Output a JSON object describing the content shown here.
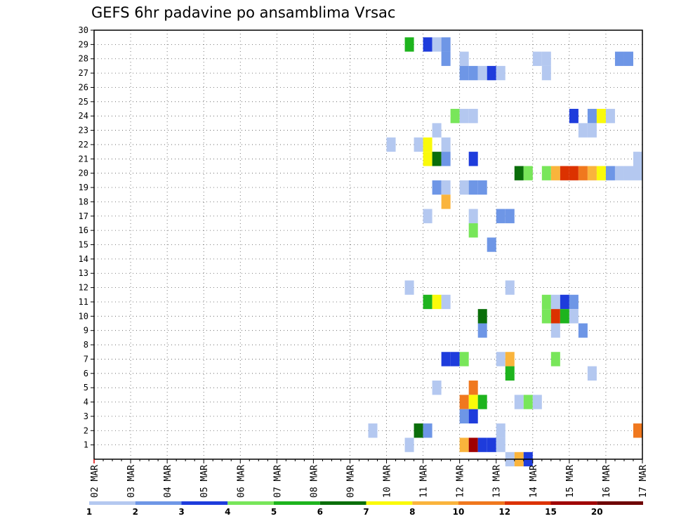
{
  "chart_data": {
    "type": "heatmap",
    "title": "GEFS 6hr padavine po ansamblima Vrsac",
    "x_tick_labels": [
      "02 MAR",
      "03 MAR",
      "04 MAR",
      "05 MAR",
      "06 MAR",
      "07 MAR",
      "08 MAR",
      "09 MAR",
      "10 MAR",
      "11 MAR",
      "12 MAR",
      "13 MAR",
      "14 MAR",
      "15 MAR",
      "16 MAR",
      "17 MAR"
    ],
    "x_range_days": [
      2,
      17
    ],
    "y_tick_labels": [
      "1",
      "2",
      "3",
      "4",
      "5",
      "6",
      "7",
      "8",
      "9",
      "10",
      "11",
      "12",
      "13",
      "14",
      "15",
      "16",
      "17",
      "18",
      "19",
      "20",
      "21",
      "22",
      "23",
      "24",
      "25",
      "26",
      "27",
      "28",
      "29",
      "30"
    ],
    "y_range": [
      0,
      30
    ],
    "grid": true,
    "legend": {
      "placement": "bottom",
      "colors": [
        "#b4c8f0",
        "#6e96e6",
        "#1e3cdc",
        "#78e65a",
        "#1eb41e",
        "#0a6e0a",
        "#fafa0a",
        "#fab43c",
        "#f0781e",
        "#dc3200",
        "#a00000",
        "#6e0000"
      ],
      "labels": [
        "1",
        "2",
        "3",
        "4",
        "5",
        "6",
        "7",
        "8",
        "10",
        "12",
        "15",
        "20"
      ]
    },
    "cells": [
      {
        "day": 10.5,
        "member": 29,
        "level": 5
      },
      {
        "day": 11.0,
        "member": 29,
        "level": 3
      },
      {
        "day": 11.25,
        "member": 29,
        "level": 1
      },
      {
        "day": 11.5,
        "member": 29,
        "level": 2
      },
      {
        "day": 11.5,
        "member": 28,
        "level": 2
      },
      {
        "day": 12.0,
        "member": 28,
        "level": 1
      },
      {
        "day": 14.0,
        "member": 28,
        "level": 1
      },
      {
        "day": 14.25,
        "member": 28,
        "level": 1
      },
      {
        "day": 16.25,
        "member": 28,
        "level": 2
      },
      {
        "day": 16.5,
        "member": 28,
        "level": 2
      },
      {
        "day": 12.0,
        "member": 27,
        "level": 2
      },
      {
        "day": 12.25,
        "member": 27,
        "level": 2
      },
      {
        "day": 12.5,
        "member": 27,
        "level": 1
      },
      {
        "day": 12.75,
        "member": 27,
        "level": 3
      },
      {
        "day": 13.0,
        "member": 27,
        "level": 1
      },
      {
        "day": 14.25,
        "member": 27,
        "level": 1
      },
      {
        "day": 11.75,
        "member": 24,
        "level": 4
      },
      {
        "day": 12.0,
        "member": 24,
        "level": 1
      },
      {
        "day": 12.25,
        "member": 24,
        "level": 1
      },
      {
        "day": 15.0,
        "member": 24,
        "level": 3
      },
      {
        "day": 15.5,
        "member": 24,
        "level": 2
      },
      {
        "day": 15.75,
        "member": 24,
        "level": 7
      },
      {
        "day": 16.0,
        "member": 24,
        "level": 1
      },
      {
        "day": 11.25,
        "member": 23,
        "level": 1
      },
      {
        "day": 15.25,
        "member": 23,
        "level": 1
      },
      {
        "day": 15.5,
        "member": 23,
        "level": 1
      },
      {
        "day": 10.0,
        "member": 22,
        "level": 1
      },
      {
        "day": 10.75,
        "member": 22,
        "level": 1
      },
      {
        "day": 11.0,
        "member": 22,
        "level": 7
      },
      {
        "day": 11.5,
        "member": 22,
        "level": 1
      },
      {
        "day": 11.0,
        "member": 21,
        "level": 7
      },
      {
        "day": 11.25,
        "member": 21,
        "level": 6
      },
      {
        "day": 11.5,
        "member": 21,
        "level": 2
      },
      {
        "day": 12.25,
        "member": 21,
        "level": 3
      },
      {
        "day": 16.75,
        "member": 21,
        "level": 1
      },
      {
        "day": 13.5,
        "member": 20,
        "level": 6
      },
      {
        "day": 13.75,
        "member": 20,
        "level": 4
      },
      {
        "day": 14.25,
        "member": 20,
        "level": 4
      },
      {
        "day": 14.5,
        "member": 20,
        "level": 8
      },
      {
        "day": 14.75,
        "member": 20,
        "level": 10
      },
      {
        "day": 15.0,
        "member": 20,
        "level": 10
      },
      {
        "day": 15.25,
        "member": 20,
        "level": 9
      },
      {
        "day": 15.5,
        "member": 20,
        "level": 8
      },
      {
        "day": 15.75,
        "member": 20,
        "level": 7
      },
      {
        "day": 16.0,
        "member": 20,
        "level": 2
      },
      {
        "day": 16.25,
        "member": 20,
        "level": 1
      },
      {
        "day": 16.5,
        "member": 20,
        "level": 1
      },
      {
        "day": 16.75,
        "member": 20,
        "level": 1
      },
      {
        "day": 11.25,
        "member": 19,
        "level": 2
      },
      {
        "day": 11.5,
        "member": 19,
        "level": 1
      },
      {
        "day": 12.0,
        "member": 19,
        "level": 1
      },
      {
        "day": 12.25,
        "member": 19,
        "level": 2
      },
      {
        "day": 12.5,
        "member": 19,
        "level": 2
      },
      {
        "day": 11.5,
        "member": 18,
        "level": 8
      },
      {
        "day": 11.0,
        "member": 17,
        "level": 1
      },
      {
        "day": 12.25,
        "member": 17,
        "level": 1
      },
      {
        "day": 13.0,
        "member": 17,
        "level": 2
      },
      {
        "day": 13.25,
        "member": 17,
        "level": 2
      },
      {
        "day": 12.25,
        "member": 16,
        "level": 4
      },
      {
        "day": 12.75,
        "member": 15,
        "level": 2
      },
      {
        "day": 10.5,
        "member": 12,
        "level": 1
      },
      {
        "day": 13.25,
        "member": 12,
        "level": 1
      },
      {
        "day": 11.0,
        "member": 11,
        "level": 5
      },
      {
        "day": 11.25,
        "member": 11,
        "level": 7
      },
      {
        "day": 11.5,
        "member": 11,
        "level": 1
      },
      {
        "day": 14.25,
        "member": 11,
        "level": 4
      },
      {
        "day": 14.5,
        "member": 11,
        "level": 1
      },
      {
        "day": 14.75,
        "member": 11,
        "level": 3
      },
      {
        "day": 15.0,
        "member": 11,
        "level": 2
      },
      {
        "day": 12.5,
        "member": 10,
        "level": 6
      },
      {
        "day": 14.25,
        "member": 10,
        "level": 4
      },
      {
        "day": 14.5,
        "member": 10,
        "level": 10
      },
      {
        "day": 14.75,
        "member": 10,
        "level": 5
      },
      {
        "day": 15.0,
        "member": 10,
        "level": 1
      },
      {
        "day": 12.5,
        "member": 9,
        "level": 2
      },
      {
        "day": 14.5,
        "member": 9,
        "level": 1
      },
      {
        "day": 15.25,
        "member": 9,
        "level": 2
      },
      {
        "day": 11.5,
        "member": 7,
        "level": 3
      },
      {
        "day": 11.75,
        "member": 7,
        "level": 3
      },
      {
        "day": 12.0,
        "member": 7,
        "level": 4
      },
      {
        "day": 13.0,
        "member": 7,
        "level": 1
      },
      {
        "day": 13.25,
        "member": 7,
        "level": 8
      },
      {
        "day": 14.5,
        "member": 7,
        "level": 4
      },
      {
        "day": 13.25,
        "member": 6,
        "level": 5
      },
      {
        "day": 15.5,
        "member": 6,
        "level": 1
      },
      {
        "day": 11.25,
        "member": 5,
        "level": 1
      },
      {
        "day": 12.25,
        "member": 5,
        "level": 9
      },
      {
        "day": 12.0,
        "member": 4,
        "level": 9
      },
      {
        "day": 12.25,
        "member": 4,
        "level": 7
      },
      {
        "day": 12.5,
        "member": 4,
        "level": 5
      },
      {
        "day": 13.5,
        "member": 4,
        "level": 1
      },
      {
        "day": 13.75,
        "member": 4,
        "level": 4
      },
      {
        "day": 14.0,
        "member": 4,
        "level": 1
      },
      {
        "day": 12.0,
        "member": 3,
        "level": 2
      },
      {
        "day": 12.25,
        "member": 3,
        "level": 3
      },
      {
        "day": 9.5,
        "member": 2,
        "level": 1
      },
      {
        "day": 10.75,
        "member": 2,
        "level": 6
      },
      {
        "day": 11.0,
        "member": 2,
        "level": 2
      },
      {
        "day": 13.0,
        "member": 2,
        "level": 1
      },
      {
        "day": 16.75,
        "member": 2,
        "level": 9
      },
      {
        "day": 10.5,
        "member": 1,
        "level": 1
      },
      {
        "day": 12.0,
        "member": 1,
        "level": 8
      },
      {
        "day": 12.25,
        "member": 1,
        "level": 11
      },
      {
        "day": 12.5,
        "member": 1,
        "level": 3
      },
      {
        "day": 12.75,
        "member": 1,
        "level": 3
      },
      {
        "day": 13.0,
        "member": 1,
        "level": 1
      },
      {
        "day": 13.25,
        "member": 0,
        "level": 1
      },
      {
        "day": 13.5,
        "member": 0,
        "level": 8
      },
      {
        "day": 13.75,
        "member": 0,
        "level": 3
      }
    ]
  }
}
